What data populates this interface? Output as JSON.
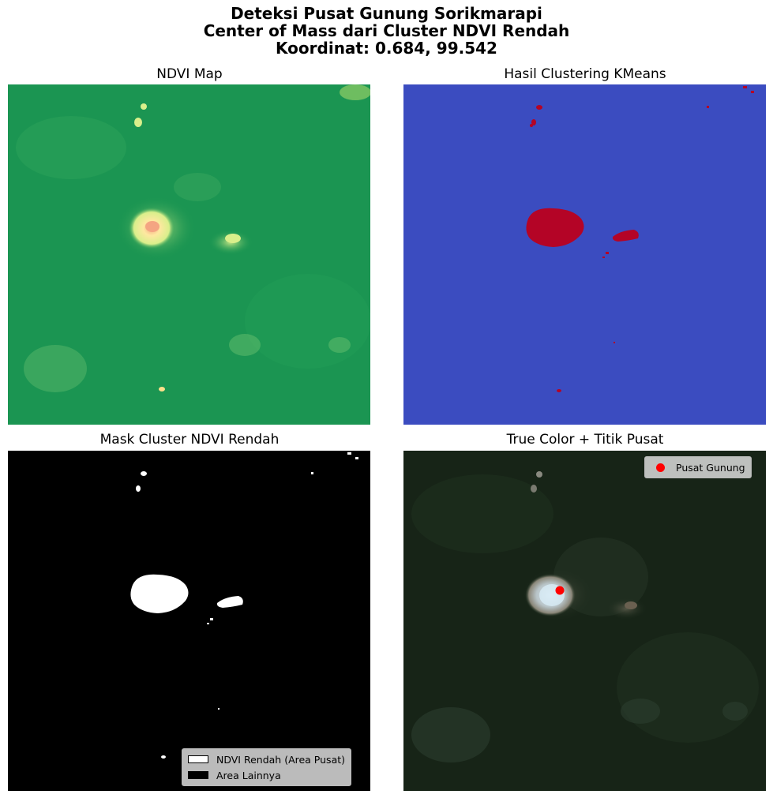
{
  "figure": {
    "title_lines": [
      "Deteksi Pusat Gunung Sorikmarapi",
      "Center of Mass dari Cluster NDVI Rendah",
      "Koordinat: 0.684, 99.542"
    ]
  },
  "panels": [
    {
      "title": "NDVI Map",
      "colormap": "RdYlGn",
      "background_color": "#1a9850"
    },
    {
      "title": "Hasil Clustering KMeans",
      "colormap": "coolwarm",
      "background_color": "#3b4cc0",
      "highlight_color": "#b40426"
    },
    {
      "title": "Mask Cluster NDVI Rendah",
      "background_color": "#000000",
      "mask_color": "#ffffff",
      "legend": {
        "position": "lower-right",
        "entries": [
          "NDVI Rendah (Area Pusat)",
          "Area Lainnya"
        ]
      }
    },
    {
      "title": "True Color + Titik Pusat",
      "background_color": "#1b2a1c",
      "legend": {
        "position": "upper-right",
        "entries": [
          "Pusat Gunung"
        ]
      },
      "marker_color": "#ff0000"
    }
  ]
}
